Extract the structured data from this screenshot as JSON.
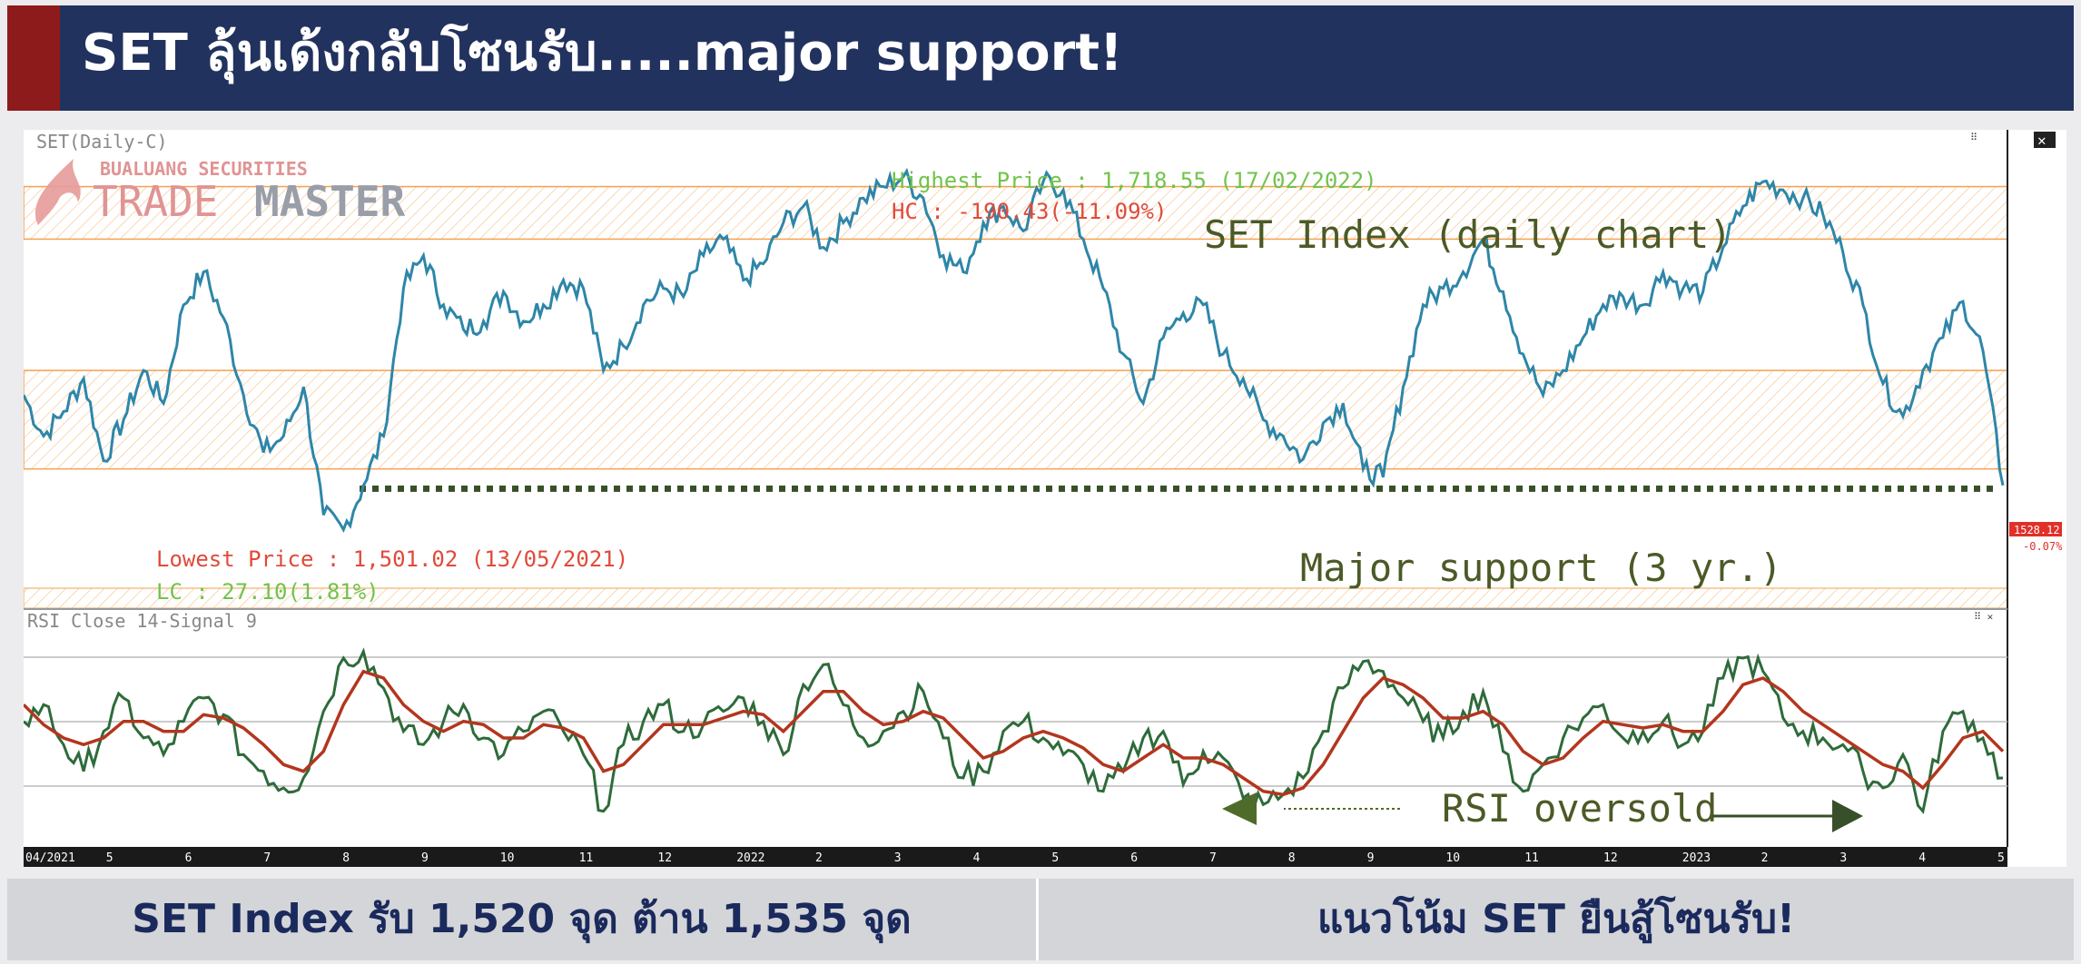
{
  "header": {
    "title": "SET ลุ้นเด้งกลับโซนรับ.....major support!",
    "colors": {
      "bar": "#22325e",
      "accent": "#8e1b1b"
    }
  },
  "chart": {
    "top_panel_label": "SET(Daily-C)",
    "bottom_panel_label": "RSI Close 14-Signal 9",
    "logo": {
      "line1": "BUALUANG SECURITIES",
      "line2a": "TRADE",
      "line2b": "MASTER"
    },
    "annotations": {
      "highest": "Highest Price : 1,718.55 (17/02/2022)",
      "hc": "HC : -190.43(-11.09%)",
      "lowest": "Lowest Price : 1,501.02 (13/05/2021)",
      "lc": "LC : 27.10(1.81%)",
      "index_title": "SET Index (daily chart)",
      "support": "Major support (3 yr.)",
      "rsi": "RSI oversold"
    },
    "last_price": "1528.12",
    "last_change": "-0.07%",
    "colors": {
      "price_line": "#2e86a8",
      "rsi_line": "#2e6b3a",
      "signal_line": "#b3361e",
      "zone": "#f3a24f",
      "support": "#38502a"
    }
  },
  "chart_data": [
    {
      "type": "line",
      "title": "SET Index (daily chart)",
      "series": [
        {
          "name": "SET(Daily-C)",
          "values": [
            1585,
            1560,
            1575,
            1595,
            1545,
            1570,
            1600,
            1580,
            1640,
            1660,
            1632,
            1585,
            1550,
            1560,
            1590,
            1512,
            1503,
            1530,
            1560,
            1650,
            1670,
            1640,
            1625,
            1630,
            1648,
            1630,
            1640,
            1655,
            1650,
            1600,
            1615,
            1640,
            1650,
            1645,
            1670,
            1680,
            1655,
            1665,
            1690,
            1700,
            1675,
            1690,
            1705,
            1712,
            1718,
            1705,
            1670,
            1660,
            1690,
            1700,
            1685,
            1715,
            1710,
            1680,
            1650,
            1610,
            1580,
            1620,
            1635,
            1640,
            1610,
            1595,
            1570,
            1560,
            1546,
            1568,
            1580,
            1540,
            1535,
            1590,
            1640,
            1650,
            1660,
            1680,
            1648,
            1610,
            1585,
            1600,
            1620,
            1640,
            1645,
            1640,
            1660,
            1650,
            1648,
            1675,
            1700,
            1715,
            1710,
            1705,
            1695,
            1672,
            1640,
            1592,
            1572,
            1600,
            1620,
            1642,
            1612,
            1530
          ]
        }
      ],
      "yrange_approx": [
        1500,
        1720
      ],
      "x_ticks": [
        "04/2021",
        "5",
        "6",
        "7",
        "8",
        "9",
        "10",
        "11",
        "12",
        "2022",
        "2",
        "3",
        "4",
        "5",
        "6",
        "7",
        "8",
        "9",
        "10",
        "11",
        "12",
        "2023",
        "2",
        "3",
        "4",
        "5"
      ],
      "zones": [
        [
          1540,
          1600
        ],
        [
          1680,
          1712
        ]
      ],
      "support_level": 1528,
      "annotations": [
        "Highest Price : 1,718.55 (17/02/2022)",
        "HC : -190.43(-11.09%)",
        "Lowest Price : 1,501.02 (13/05/2021)",
        "LC : 27.10(1.81%)",
        "Major support (3 yr.)"
      ],
      "last_value": 1528.12
    },
    {
      "type": "line",
      "series": [
        {
          "name": "RSI Close 14",
          "values": [
            55,
            60,
            48,
            40,
            52,
            62,
            50,
            45,
            55,
            62,
            57,
            45,
            40,
            35,
            38,
            58,
            74,
            76,
            65,
            52,
            48,
            55,
            60,
            50,
            45,
            52,
            58,
            52,
            45,
            28,
            48,
            55,
            60,
            52,
            54,
            58,
            62,
            55,
            45,
            66,
            72,
            60,
            50,
            52,
            58,
            64,
            50,
            38,
            40,
            52,
            55,
            50,
            45,
            42,
            34,
            40,
            50,
            52,
            36,
            46,
            44,
            32,
            30,
            33,
            38,
            52,
            65,
            73,
            70,
            62,
            55,
            50,
            58,
            64,
            46,
            34,
            42,
            50,
            56,
            60,
            50,
            52,
            55,
            48,
            52,
            68,
            74,
            70,
            56,
            52,
            50,
            48,
            40,
            35,
            45,
            28,
            52,
            58,
            50,
            38
          ]
        },
        {
          "name": "Signal 9",
          "values": [
            60,
            54,
            50,
            48,
            50,
            55,
            55,
            52,
            52,
            57,
            56,
            53,
            48,
            42,
            40,
            46,
            60,
            70,
            68,
            60,
            55,
            52,
            55,
            54,
            50,
            50,
            54,
            53,
            50,
            40,
            42,
            48,
            54,
            54,
            54,
            56,
            58,
            57,
            52,
            58,
            64,
            64,
            58,
            54,
            55,
            58,
            56,
            50,
            44,
            46,
            50,
            52,
            50,
            47,
            42,
            40,
            44,
            48,
            44,
            44,
            42,
            38,
            34,
            33,
            35,
            42,
            52,
            62,
            68,
            66,
            62,
            56,
            56,
            58,
            54,
            46,
            42,
            44,
            50,
            55,
            54,
            53,
            54,
            52,
            52,
            58,
            66,
            68,
            64,
            58,
            54,
            50,
            46,
            42,
            40,
            35,
            42,
            50,
            52,
            46
          ]
        }
      ],
      "yrange_approx": [
        20,
        80
      ],
      "reference_lines": [
        30,
        50,
        70
      ],
      "annotations": [
        "RSI oversold"
      ]
    }
  ],
  "footer": {
    "left": "SET Index รับ 1,520 จุด ต้าน 1,535 จุด",
    "right": "แนวโน้ม SET ยืนสู้โซนรับ!"
  }
}
